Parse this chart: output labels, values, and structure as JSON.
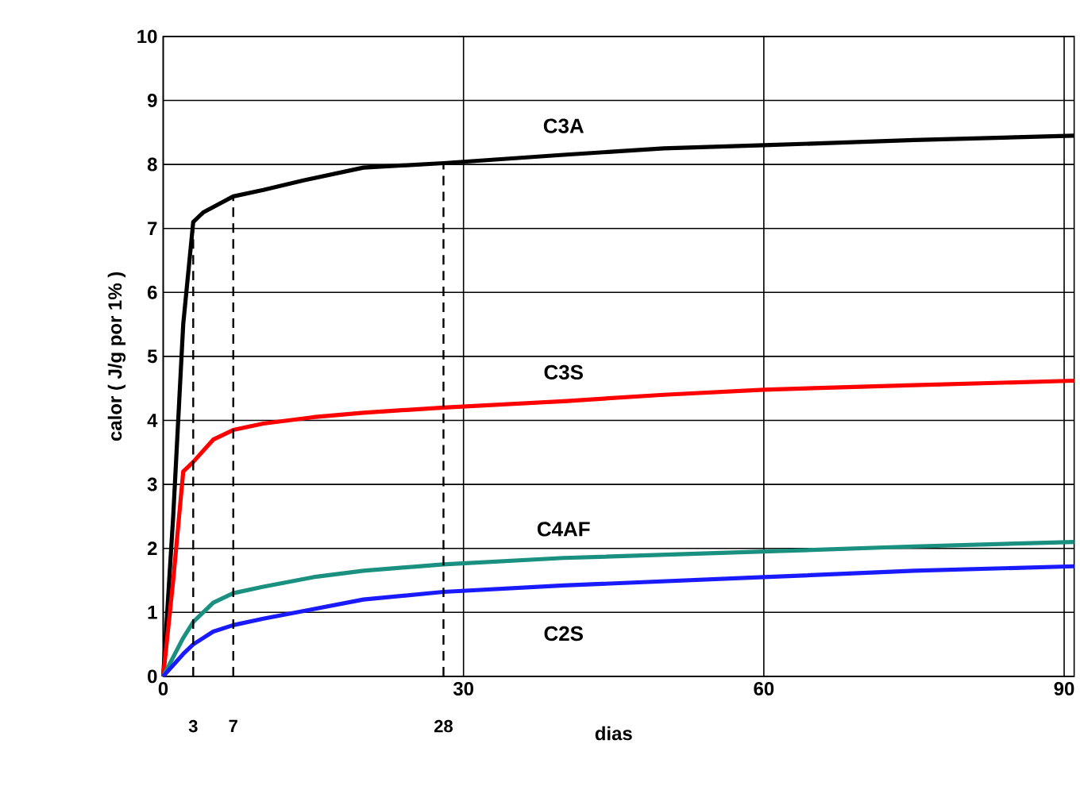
{
  "chart_data": {
    "type": "line",
    "xlabel": "dias",
    "ylabel": "calor ( J/g por 1% )",
    "xlim": [
      0,
      91
    ],
    "xticks": [
      0,
      30,
      60,
      90
    ],
    "ylim": [
      0,
      10
    ],
    "yticks": [
      0,
      1,
      2,
      3,
      4,
      5,
      6,
      7,
      8,
      9,
      10
    ],
    "grid": true,
    "marker": "none",
    "series": [
      {
        "name": "C3A",
        "color": "#000000",
        "x": [
          0,
          1,
          2,
          3,
          4,
          7,
          10,
          14,
          20,
          28,
          40,
          50,
          60,
          75,
          91
        ],
        "values": [
          0,
          2.5,
          5.5,
          7.1,
          7.25,
          7.5,
          7.6,
          7.75,
          7.95,
          8.02,
          8.15,
          8.25,
          8.3,
          8.38,
          8.45
        ]
      },
      {
        "name": "C3S",
        "color": "#ff0000",
        "x": [
          0,
          1,
          2,
          3,
          5,
          7,
          10,
          15,
          20,
          28,
          40,
          50,
          60,
          75,
          91
        ],
        "values": [
          0,
          1.5,
          3.2,
          3.35,
          3.7,
          3.85,
          3.95,
          4.05,
          4.12,
          4.2,
          4.3,
          4.4,
          4.48,
          4.55,
          4.62
        ]
      },
      {
        "name": "C4AF",
        "color": "#1a9080",
        "x": [
          0,
          2,
          3,
          5,
          7,
          10,
          15,
          20,
          28,
          40,
          60,
          75,
          91
        ],
        "values": [
          0,
          0.6,
          0.85,
          1.15,
          1.3,
          1.4,
          1.55,
          1.65,
          1.75,
          1.85,
          1.95,
          2.03,
          2.1
        ]
      },
      {
        "name": "C2S",
        "color": "#1a1aff",
        "x": [
          0,
          2,
          3,
          5,
          7,
          10,
          15,
          20,
          28,
          40,
          60,
          75,
          91
        ],
        "values": [
          0,
          0.35,
          0.5,
          0.7,
          0.8,
          0.9,
          1.05,
          1.2,
          1.32,
          1.42,
          1.55,
          1.65,
          1.72
        ]
      },
      {
        "color": "#000000",
        "line_style": "dashed",
        "x": [
          3,
          3
        ],
        "values": [
          0,
          7.1
        ]
      },
      {
        "color": "#000000",
        "line_style": "dashed",
        "x": [
          7,
          7
        ],
        "values": [
          0,
          7.5
        ]
      },
      {
        "color": "#000000",
        "line_style": "dashed",
        "x": [
          28,
          28
        ],
        "values": [
          0,
          8.02
        ]
      }
    ],
    "annotations": [
      {
        "text": "3",
        "x": 3,
        "y": 0
      },
      {
        "text": "7",
        "x": 7,
        "y": 0
      },
      {
        "text": "28",
        "x": 28,
        "y": 0
      }
    ]
  }
}
